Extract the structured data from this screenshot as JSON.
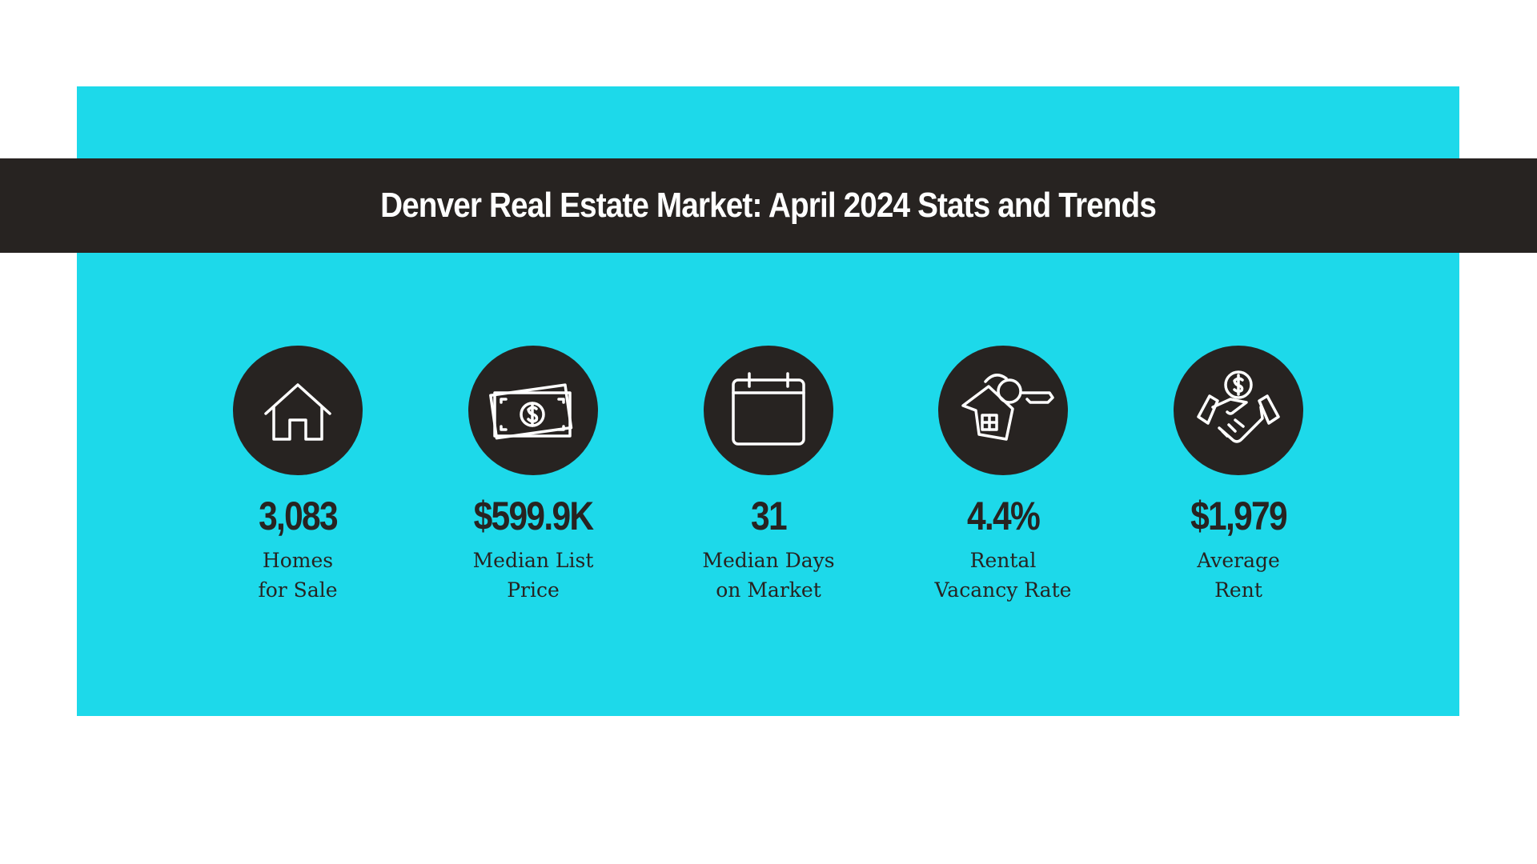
{
  "header": {
    "title": "Denver Real Estate Market: April 2024 Stats and Trends"
  },
  "stats": [
    {
      "value": "3,083",
      "label_lines": [
        "Homes",
        "for Sale"
      ]
    },
    {
      "value": "$599.9K",
      "label_lines": [
        "Median List",
        "Price"
      ]
    },
    {
      "value": "31",
      "label_lines": [
        "Median Days",
        "on Market"
      ]
    },
    {
      "value": "4.4%",
      "label_lines": [
        "Rental",
        "Vacancy Rate"
      ]
    },
    {
      "value": "$1,979",
      "label_lines": [
        "Average",
        "Rent"
      ]
    }
  ]
}
